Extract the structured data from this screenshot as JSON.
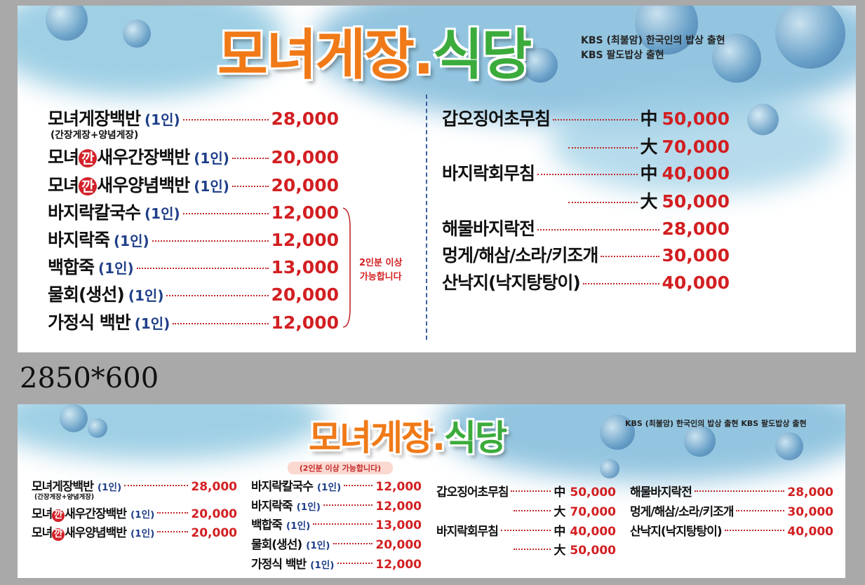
{
  "banner_large": {
    "title_main": "모녀게장",
    "title_dot": ".",
    "title_accent": "식당",
    "kbs_lines": [
      "KBS (최불암) 한국인의 밥상 출현",
      "KBS 팔도밥상 출현"
    ],
    "left_items": [
      {
        "prefix": "모녀게장백반",
        "badge": "",
        "suffix": "",
        "portion": "(1인)",
        "sub": "(간장게장+양념게장)",
        "price": "28,000"
      },
      {
        "prefix": "모녀",
        "badge": "깐",
        "suffix": "새우간장백반",
        "portion": "(1인)",
        "price": "20,000"
      },
      {
        "prefix": "모녀",
        "badge": "깐",
        "suffix": "새우양념백반",
        "portion": "(1인)",
        "price": "20,000"
      },
      {
        "prefix": "바지락칼국수",
        "badge": "",
        "suffix": "",
        "portion": "(1인)",
        "price": "12,000"
      },
      {
        "prefix": "바지락죽",
        "badge": "",
        "suffix": "",
        "portion": "(1인)",
        "price": "12,000"
      },
      {
        "prefix": "백합죽",
        "badge": "",
        "suffix": "",
        "portion": "(1인)",
        "price": "13,000"
      },
      {
        "prefix": "물회(생선)",
        "badge": "",
        "suffix": "",
        "portion": "(1인)",
        "price": "20,000"
      },
      {
        "prefix": "가정식 백반",
        "badge": "",
        "suffix": "",
        "portion": "(1인)",
        "price": "12,000"
      }
    ],
    "note_lines": [
      "2인분 이상",
      "가능합니다"
    ],
    "right_items": [
      {
        "prefix": "갑오징어초무침",
        "size": "中",
        "price": "50,000"
      },
      {
        "prefix": "",
        "size": "大",
        "price": "70,000"
      },
      {
        "prefix": "바지락회무침",
        "size": "中",
        "price": "40,000"
      },
      {
        "prefix": "",
        "size": "大",
        "price": "50,000"
      },
      {
        "prefix": "해물바지락전",
        "size": "",
        "price": "28,000"
      },
      {
        "prefix": "멍게/해삼/소라/키조개",
        "size": "",
        "price": "30,000"
      },
      {
        "prefix": "산낙지(낙지탕탕이)",
        "size": "",
        "price": "40,000"
      }
    ]
  },
  "size_caption": "2850*600",
  "banner_small": {
    "title_main": "모녀게장",
    "title_dot": ".",
    "title_accent": "식당",
    "kbs_line": "KBS (최불암) 한국인의 밥상 출현 KBS 팔도밥상 출현",
    "note": "(2인분 이상 가능합니다)",
    "col1": [
      {
        "prefix": "모녀게장백반",
        "badge": "",
        "suffix": "",
        "portion": "(1인)",
        "sub": "(간장게장+양념게장)",
        "price": "28,000"
      },
      {
        "prefix": "모녀",
        "badge": "깐",
        "suffix": "새우간장백반",
        "portion": "(1인)",
        "price": "20,000"
      },
      {
        "prefix": "모녀",
        "badge": "깐",
        "suffix": "새우양념백반",
        "portion": "(1인)",
        "price": "20,000"
      }
    ],
    "col2": [
      {
        "prefix": "바지락칼국수",
        "portion": "(1인)",
        "price": "12,000"
      },
      {
        "prefix": "바지락죽",
        "portion": "(1인)",
        "price": "12,000"
      },
      {
        "prefix": "백합죽",
        "portion": "(1인)",
        "price": "13,000"
      },
      {
        "prefix": "물회(생선)",
        "portion": "(1인)",
        "price": "20,000"
      },
      {
        "prefix": "가정식 백반",
        "portion": "(1인)",
        "price": "12,000"
      }
    ],
    "col3": [
      {
        "prefix": "갑오징어초무침",
        "size": "中",
        "price": "50,000"
      },
      {
        "prefix": "",
        "size": "大",
        "price": "70,000"
      },
      {
        "prefix": "바지락회무침",
        "size": "中",
        "price": "40,000"
      },
      {
        "prefix": "",
        "size": "大",
        "price": "50,000"
      }
    ],
    "col4": [
      {
        "prefix": "해물바지락전",
        "price": "28,000"
      },
      {
        "prefix": "멍게/해삼/소라/키조개",
        "price": "30,000"
      },
      {
        "prefix": "산낙지(낙지탕탕이)",
        "price": "40,000"
      }
    ]
  },
  "colors": {
    "title_orange": "#f07a18",
    "title_green": "#3bab3b",
    "price_red": "#d21f22",
    "portion_blue": "#1f3f88",
    "badge_red": "#d3222a",
    "background_gray": "#a9a9a9"
  }
}
